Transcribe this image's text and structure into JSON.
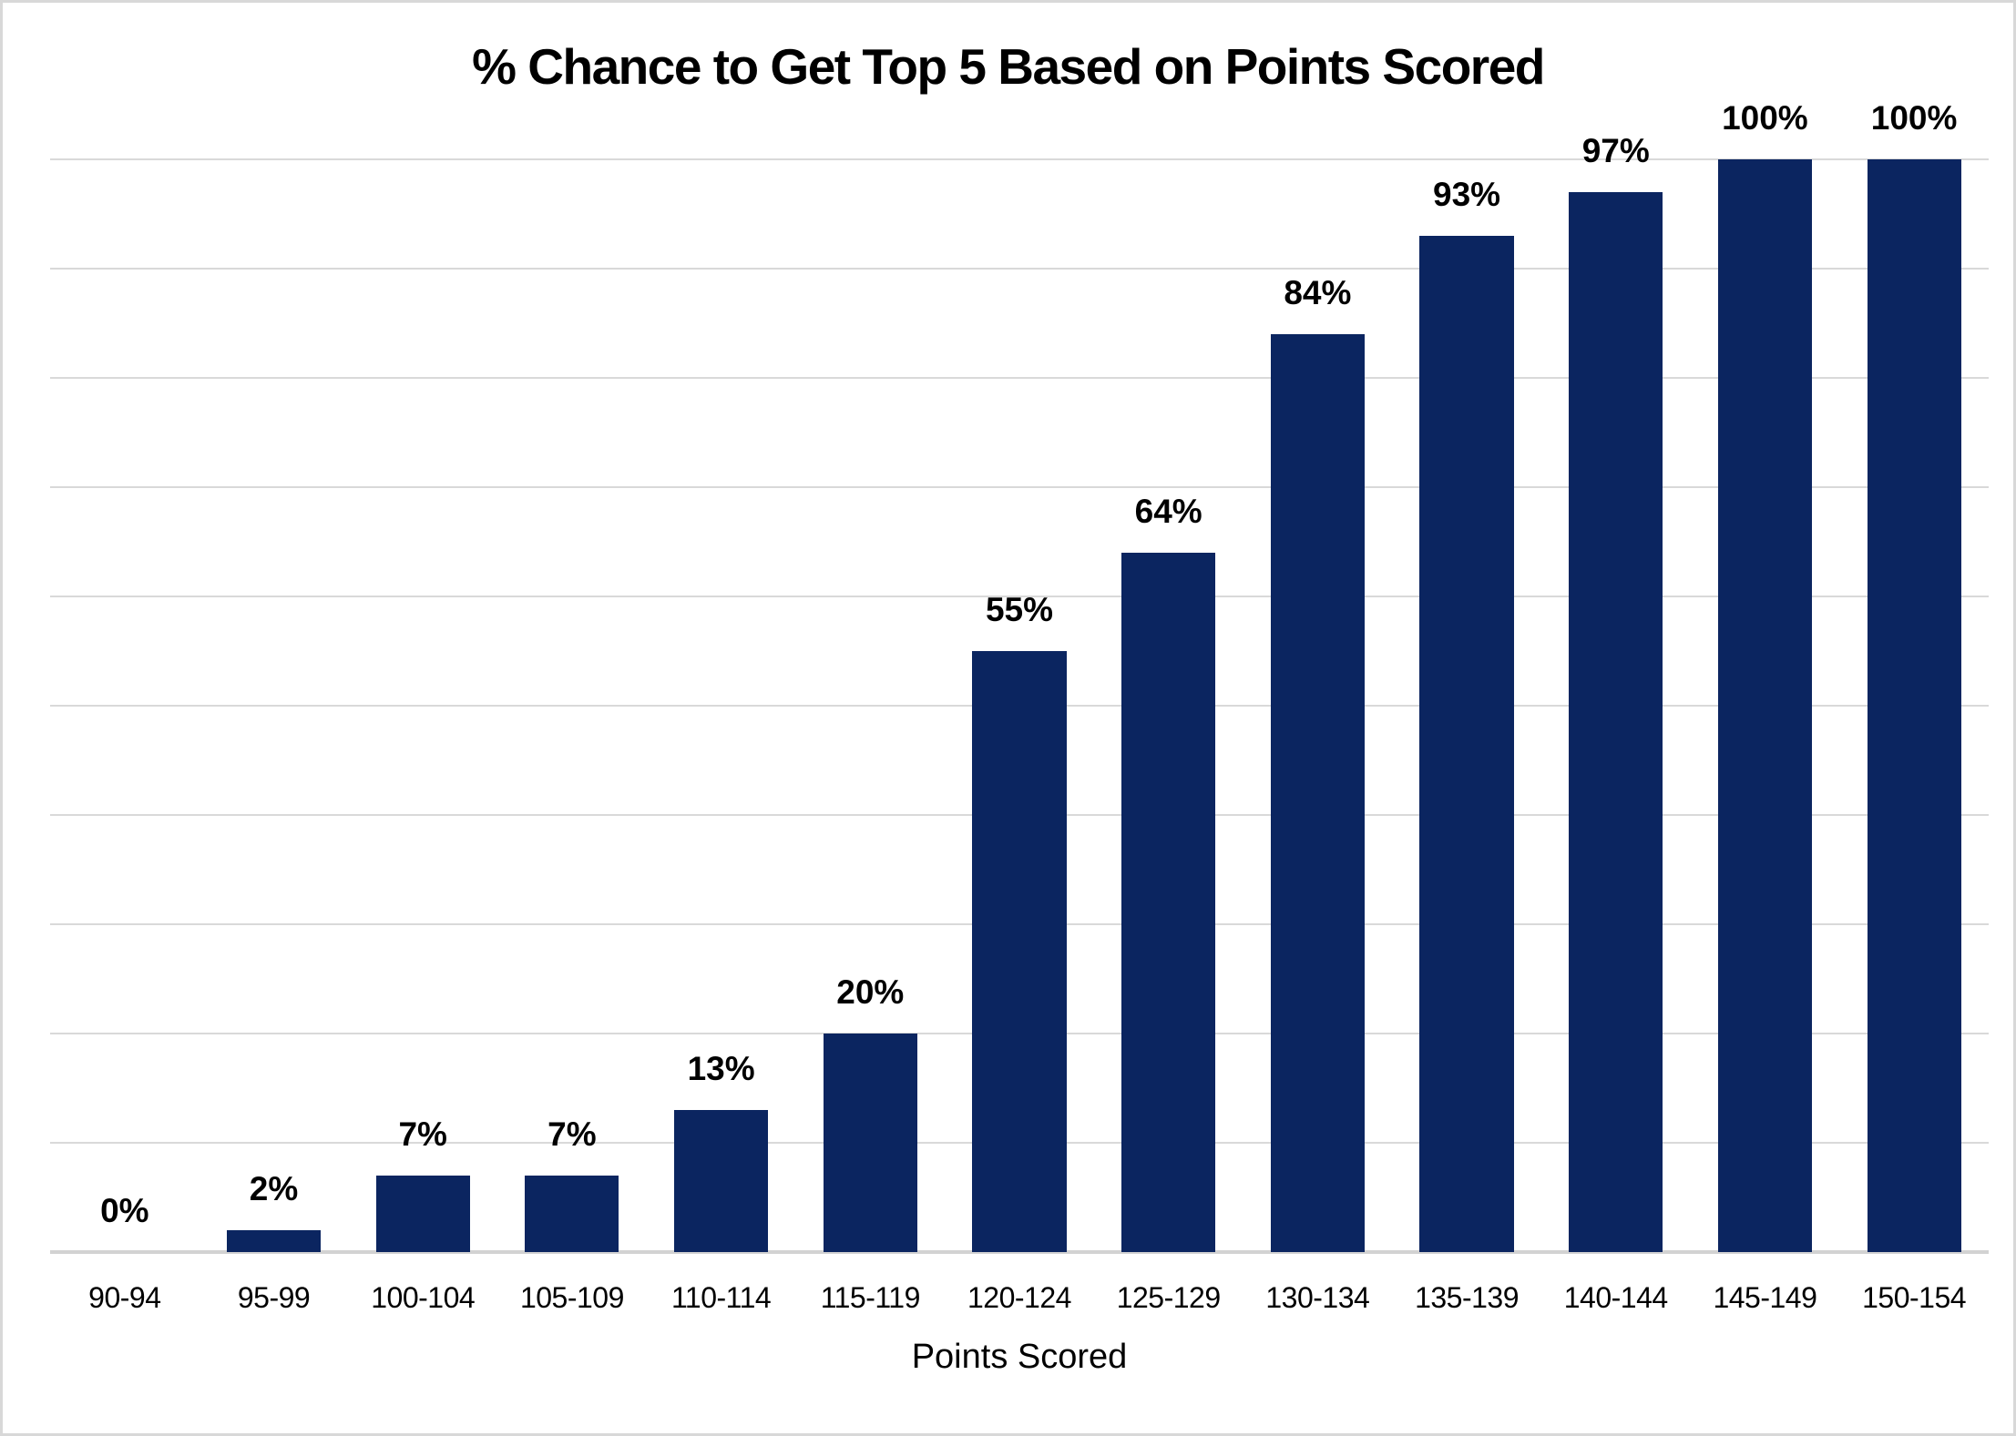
{
  "chart_data": {
    "type": "bar",
    "title": "% Chance to Get Top 5 Based on Points Scored",
    "xlabel": "Points Scored",
    "ylabel": "",
    "ylim": [
      0,
      100
    ],
    "gridline_step_percent": 10,
    "grid": "horizontal gridlines on, no y-axis tick labels, legend off",
    "categories": [
      "90-94",
      "95-99",
      "100-104",
      "105-109",
      "110-114",
      "115-119",
      "120-124",
      "125-129",
      "130-134",
      "135-139",
      "140-144",
      "145-149",
      "150-154"
    ],
    "values": [
      0,
      2,
      7,
      7,
      13,
      20,
      55,
      64,
      84,
      93,
      97,
      100,
      100
    ],
    "value_labels": [
      "0%",
      "2%",
      "7%",
      "7%",
      "13%",
      "20%",
      "55%",
      "64%",
      "84%",
      "93%",
      "97%",
      "100%",
      "100%"
    ],
    "colors": {
      "bar": "#0B2560",
      "gridline": "#D9D9D9",
      "axis_line": "#D2D2D2",
      "label_text": "#000000",
      "background": "#FFFFFF",
      "border": "#D8D8D8"
    }
  }
}
